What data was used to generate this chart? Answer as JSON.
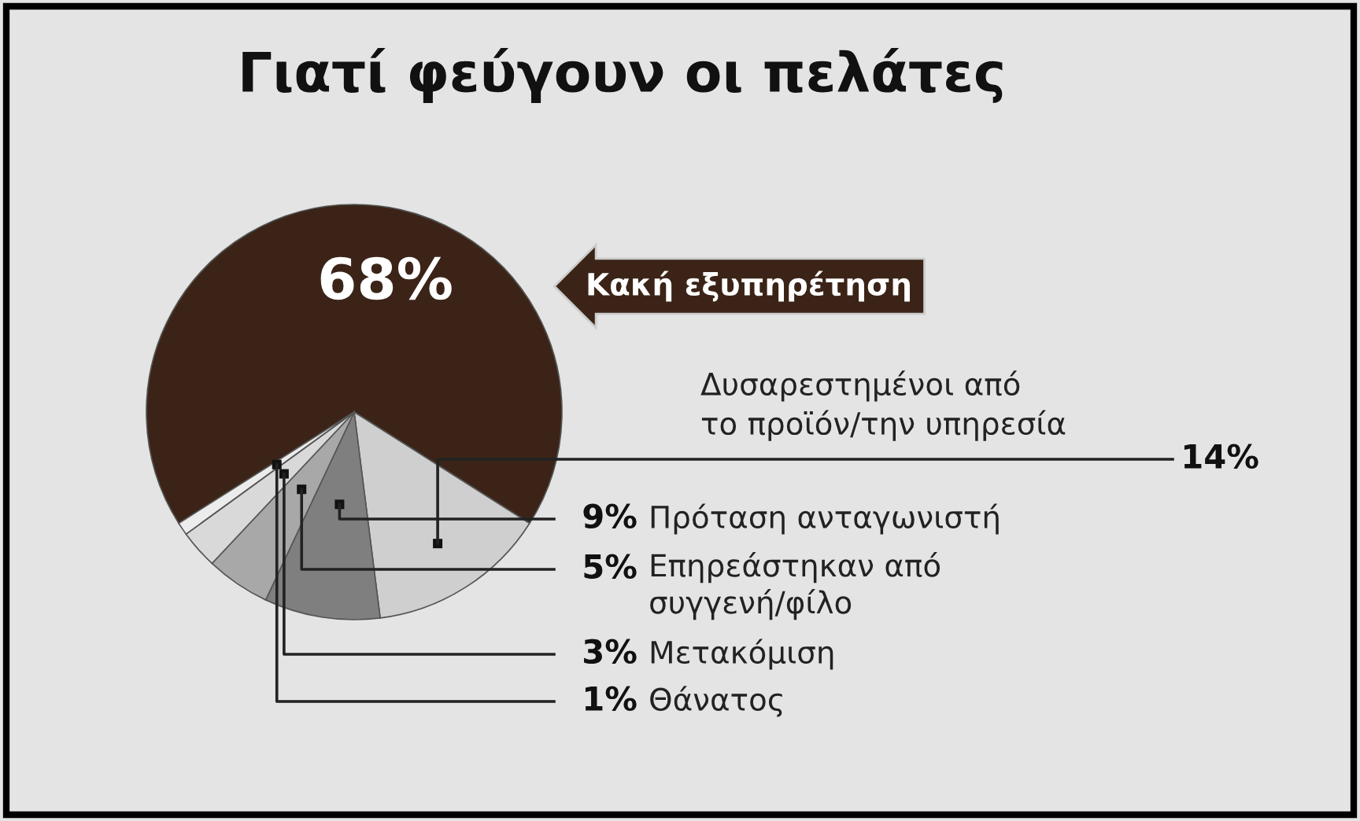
{
  "chart_data": {
    "type": "pie",
    "title": "Γιατί φεύγουν οι πελάτες",
    "categories": [
      "Κακή εξυπηρέτηση",
      "Δυσαρεστημένοι από\nτο προϊόν/την υπηρεσία",
      "Πρόταση ανταγωνιστή",
      "Επηρεάστηκαν από\nσυγγενή/φίλο",
      "Μετακόμιση",
      "Θάνατος"
    ],
    "values": [
      68,
      14,
      9,
      5,
      3,
      1
    ],
    "value_labels": [
      "68%",
      "14%",
      "9%",
      "5%",
      "3%",
      "1%"
    ],
    "colors": [
      "#3b2417",
      "#cfcfcf",
      "#7f7f7f",
      "#a8a8a8",
      "#d9d9d9",
      "#ececec"
    ],
    "legend": false
  }
}
